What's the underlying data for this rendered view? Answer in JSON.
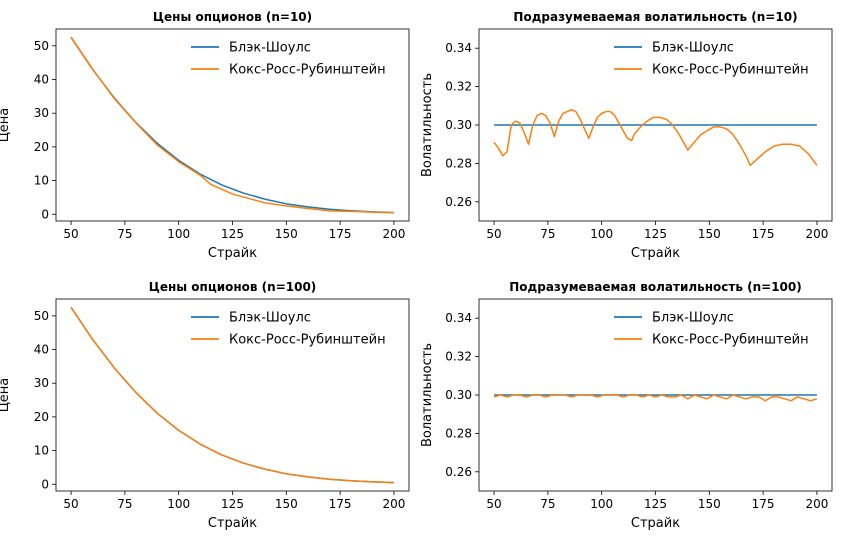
{
  "chart_data": [
    {
      "type": "line",
      "title": "Цены опционов (n=10)",
      "xlabel": "Страйк",
      "ylabel": "Цена",
      "xlim": [
        43,
        207
      ],
      "ylim": [
        -2,
        55
      ],
      "xticks": [
        50,
        75,
        100,
        125,
        150,
        175,
        200
      ],
      "yticks": [
        0,
        10,
        20,
        30,
        40,
        50
      ],
      "legend": "top-right",
      "grid": false,
      "series": [
        {
          "name": "Блэк-Шоулс",
          "color": "#1f77b4",
          "x": [
            50,
            60,
            70,
            80,
            90,
            100,
            110,
            120,
            130,
            140,
            150,
            160,
            170,
            180,
            190,
            200
          ],
          "y": [
            52.5,
            43.0,
            34.6,
            27.3,
            21.1,
            16.0,
            11.9,
            8.7,
            6.3,
            4.5,
            3.1,
            2.2,
            1.5,
            1.05,
            0.72,
            0.5
          ]
        },
        {
          "name": "Кокс-Росс-Рубинштейн",
          "color": "#ff7f0e",
          "x": [
            50,
            60,
            70,
            80,
            90,
            100,
            110,
            115,
            125,
            140,
            150,
            160,
            170,
            180,
            190,
            200
          ],
          "y": [
            52.6,
            43.1,
            34.4,
            27.2,
            20.6,
            15.6,
            11.6,
            8.8,
            6.0,
            3.4,
            2.5,
            1.7,
            1.0,
            0.85,
            0.65,
            0.45
          ]
        }
      ]
    },
    {
      "type": "line",
      "title": "Подразумеваемая волатильность (n=10)",
      "xlabel": "Страйк",
      "ylabel": "Волатильность",
      "xlim": [
        43,
        207
      ],
      "ylim": [
        0.25,
        0.35
      ],
      "xticks": [
        50,
        75,
        100,
        125,
        150,
        175,
        200
      ],
      "yticks": [
        "0.26",
        "0.28",
        "0.30",
        "0.32",
        "0.34"
      ],
      "legend": "top-right",
      "grid": false,
      "series": [
        {
          "name": "Блэк-Шоулс",
          "color": "#1f77b4",
          "x": [
            50,
            200
          ],
          "y": [
            0.3,
            0.3
          ]
        },
        {
          "name": "Кокс-Росс-Рубинштейн",
          "color": "#ff7f0e",
          "x": [
            50,
            52,
            54,
            56,
            58,
            60,
            62,
            64,
            66,
            68,
            70,
            72,
            74,
            76,
            78,
            80,
            82,
            84,
            86,
            88,
            90,
            92,
            94,
            96,
            98,
            100,
            102,
            104,
            106,
            108,
            110,
            112,
            114,
            115,
            118,
            121,
            124,
            127,
            130,
            133,
            136,
            139,
            140,
            143,
            146,
            149,
            152,
            155,
            158,
            161,
            164,
            167,
            169,
            172,
            176,
            180,
            184,
            188,
            192,
            196,
            200
          ],
          "y": [
            0.291,
            0.288,
            0.284,
            0.286,
            0.3,
            0.302,
            0.301,
            0.296,
            0.29,
            0.3,
            0.305,
            0.306,
            0.305,
            0.301,
            0.294,
            0.302,
            0.306,
            0.307,
            0.308,
            0.307,
            0.303,
            0.298,
            0.293,
            0.299,
            0.304,
            0.306,
            0.307,
            0.307,
            0.305,
            0.301,
            0.297,
            0.293,
            0.292,
            0.295,
            0.299,
            0.302,
            0.304,
            0.304,
            0.303,
            0.3,
            0.295,
            0.289,
            0.287,
            0.291,
            0.295,
            0.297,
            0.299,
            0.299,
            0.298,
            0.295,
            0.29,
            0.284,
            0.279,
            0.282,
            0.286,
            0.289,
            0.29,
            0.29,
            0.289,
            0.285,
            0.279
          ]
        }
      ]
    },
    {
      "type": "line",
      "title": "Цены опционов (n=100)",
      "xlabel": "Страйк",
      "ylabel": "Цена",
      "xlim": [
        43,
        207
      ],
      "ylim": [
        -2,
        55
      ],
      "xticks": [
        50,
        75,
        100,
        125,
        150,
        175,
        200
      ],
      "yticks": [
        0,
        10,
        20,
        30,
        40,
        50
      ],
      "legend": "top-right",
      "grid": false,
      "series": [
        {
          "name": "Блэк-Шоулс",
          "color": "#1f77b4",
          "x": [
            50,
            60,
            70,
            80,
            90,
            100,
            110,
            120,
            130,
            140,
            150,
            160,
            170,
            180,
            190,
            200
          ],
          "y": [
            52.5,
            43.0,
            34.6,
            27.3,
            21.1,
            16.0,
            11.9,
            8.7,
            6.3,
            4.5,
            3.1,
            2.2,
            1.5,
            1.05,
            0.72,
            0.5
          ]
        },
        {
          "name": "Кокс-Росс-Рубинштейн",
          "color": "#ff7f0e",
          "x": [
            50,
            60,
            70,
            80,
            90,
            100,
            110,
            120,
            130,
            140,
            150,
            160,
            170,
            180,
            190,
            200
          ],
          "y": [
            52.5,
            43.0,
            34.6,
            27.3,
            21.1,
            16.0,
            11.9,
            8.7,
            6.3,
            4.5,
            3.1,
            2.2,
            1.5,
            1.05,
            0.72,
            0.5
          ]
        }
      ]
    },
    {
      "type": "line",
      "title": "Подразумеваемая волатильность (n=100)",
      "xlabel": "Страйк",
      "ylabel": "Волатильность",
      "xlim": [
        43,
        207
      ],
      "ylim": [
        0.25,
        0.35
      ],
      "xticks": [
        50,
        75,
        100,
        125,
        150,
        175,
        200
      ],
      "yticks": [
        "0.26",
        "0.28",
        "0.30",
        "0.32",
        "0.34"
      ],
      "legend": "top-right",
      "grid": false,
      "series": [
        {
          "name": "Блэк-Шоулс",
          "color": "#1f77b4",
          "x": [
            50,
            200
          ],
          "y": [
            0.3,
            0.3
          ]
        },
        {
          "name": "Кокс-Росс-Рубинштейн",
          "color": "#ff7f0e",
          "x": [
            50,
            53,
            56,
            59,
            62,
            65,
            68,
            71,
            74,
            77,
            80,
            83,
            86,
            89,
            92,
            95,
            98,
            101,
            104,
            107,
            110,
            113,
            116,
            119,
            122,
            125,
            128,
            131,
            134,
            137,
            140,
            143,
            146,
            149,
            152,
            155,
            158,
            161,
            164,
            167,
            170,
            173,
            176,
            179,
            182,
            185,
            188,
            191,
            194,
            197,
            200
          ],
          "y": [
            0.299,
            0.3,
            0.299,
            0.3,
            0.3,
            0.299,
            0.3,
            0.3,
            0.299,
            0.3,
            0.3,
            0.3,
            0.299,
            0.3,
            0.3,
            0.3,
            0.299,
            0.3,
            0.3,
            0.3,
            0.299,
            0.3,
            0.3,
            0.299,
            0.3,
            0.299,
            0.3,
            0.299,
            0.299,
            0.3,
            0.298,
            0.3,
            0.299,
            0.298,
            0.3,
            0.299,
            0.298,
            0.3,
            0.299,
            0.298,
            0.299,
            0.299,
            0.297,
            0.299,
            0.299,
            0.298,
            0.297,
            0.299,
            0.298,
            0.297,
            0.298
          ]
        }
      ]
    }
  ]
}
